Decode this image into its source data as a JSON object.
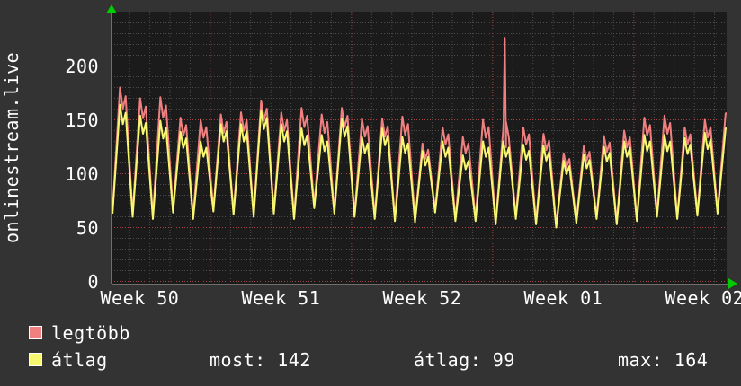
{
  "axis_title": "onlinestream.live",
  "colors": {
    "background": "#333333",
    "plot_bg": "#1b1b1b",
    "grid_minor": "#4d4d4d",
    "grid_major": "#aa4444",
    "axis": "#6e6e6e",
    "arrow": "#00cc00",
    "text": "#ffffff",
    "series_max": "#f08080",
    "series_avg": "#f8f870"
  },
  "legend": {
    "items": [
      {
        "label": "legtöbb",
        "color": "#f08080"
      },
      {
        "label": "átlag",
        "color": "#f8f870"
      }
    ],
    "stats": [
      {
        "label": "most",
        "value": 142,
        "text": "most: 142"
      },
      {
        "label": "átlag",
        "value": 99,
        "text": "átlag: 99"
      },
      {
        "label": "max",
        "value": 164,
        "text": "max: 164"
      }
    ]
  },
  "chart_data": {
    "type": "line",
    "title": "onlinestream.live",
    "ylim": [
      0,
      250
    ],
    "y_ticks": [
      0,
      50,
      100,
      150,
      200
    ],
    "y_minor_step": 10,
    "grid": "dotted, minor gray daily/10-unit lines, major red weekly/50-unit lines",
    "legend_position": "bottom-left",
    "x_week_labels": [
      "Week 50",
      "Week 51",
      "Week 52",
      "Week 01",
      "Week 02"
    ],
    "week_boundaries_days": [
      4.9,
      11.9,
      18.9,
      25.9
    ],
    "week_label_centers_days": [
      1.4,
      8.4,
      15.4,
      22.4,
      29.4
    ],
    "total_days": 30.5,
    "series": [
      {
        "name": "legtöbb",
        "role": "max",
        "color": "#f08080"
      },
      {
        "name": "átlag",
        "role": "avg",
        "color": "#f8f870"
      }
    ],
    "days": [
      {
        "t": 65,
        "max": 180,
        "avg": 164
      },
      {
        "t": 62,
        "max": 170,
        "avg": 154
      },
      {
        "t": 60,
        "max": 171,
        "avg": 149
      },
      {
        "t": 66,
        "max": 152,
        "avg": 139
      },
      {
        "t": 60,
        "max": 150,
        "avg": 130
      },
      {
        "t": 67,
        "max": 155,
        "avg": 146
      },
      {
        "t": 64,
        "max": 157,
        "avg": 146
      },
      {
        "t": 62,
        "max": 168,
        "avg": 159
      },
      {
        "t": 65,
        "max": 157,
        "avg": 146
      },
      {
        "t": 60,
        "max": 161,
        "avg": 142
      },
      {
        "t": 70,
        "max": 155,
        "avg": 136
      },
      {
        "t": 65,
        "max": 161,
        "avg": 151
      },
      {
        "t": 62,
        "max": 151,
        "avg": 134
      },
      {
        "t": 60,
        "max": 151,
        "avg": 142
      },
      {
        "t": 58,
        "max": 153,
        "avg": 134
      },
      {
        "t": 57,
        "max": 128,
        "avg": 121
      },
      {
        "t": 66,
        "max": 143,
        "avg": 130
      },
      {
        "t": 58,
        "max": 134,
        "avg": 117
      },
      {
        "t": 58,
        "max": 150,
        "avg": 130
      },
      {
        "t": 55,
        "max": 140,
        "avg": 130
      },
      {
        "t": 60,
        "max": 143,
        "avg": 127
      },
      {
        "t": 55,
        "max": 137,
        "avg": 126
      },
      {
        "t": 52,
        "max": 119,
        "avg": 112
      },
      {
        "t": 56,
        "max": 126,
        "avg": 118
      },
      {
        "t": 60,
        "max": 135,
        "avg": 125
      },
      {
        "t": 55,
        "max": 140,
        "avg": 130
      },
      {
        "t": 58,
        "max": 152,
        "avg": 136
      },
      {
        "t": 62,
        "max": 154,
        "avg": 136
      },
      {
        "t": 60,
        "max": 143,
        "avg": 133
      },
      {
        "t": 63,
        "max": 150,
        "avg": 138
      },
      {
        "t": 65,
        "max": 156,
        "avg": 142
      }
    ],
    "spike": {
      "day": 19.5,
      "value": 226
    },
    "day_shape": [
      {
        "f": 0.05,
        "mode": "trough"
      },
      {
        "f": 0.42,
        "mode": "peak"
      },
      {
        "f": 0.56,
        "scale": 0.89
      },
      {
        "f": 0.7,
        "scale": 0.955
      }
    ],
    "stats": {
      "most": 142,
      "atlag": 99,
      "max": 164
    }
  }
}
